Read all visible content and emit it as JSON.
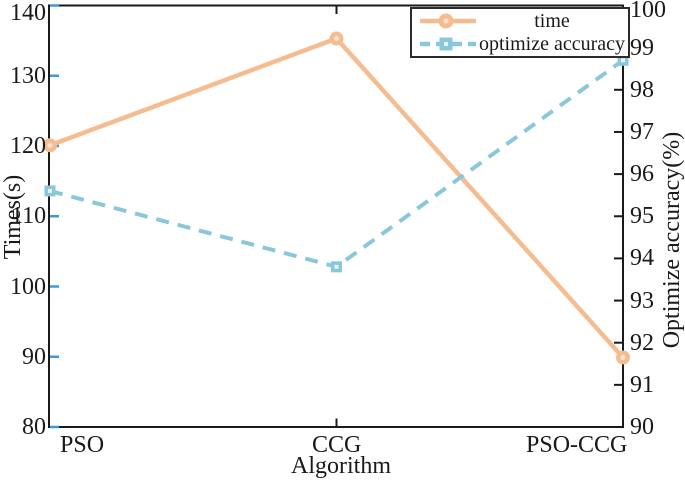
{
  "figure": {
    "background": "#ffffff"
  },
  "chart_data": {
    "type": "line",
    "title": "",
    "categories": [
      "PSO",
      "CCG",
      "PSO-CCG"
    ],
    "xlabel": "Algorithm",
    "series": [
      {
        "name": "time",
        "axis": "left",
        "values": [
          120.1,
          135.3,
          89.9
        ],
        "color": "#f5bd8f",
        "line_style": "solid",
        "marker": "circle"
      },
      {
        "name": "optimize accuracy",
        "axis": "right",
        "values": [
          95.6,
          93.8,
          98.7
        ],
        "color": "#8bc7da",
        "line_style": "dashed",
        "marker": "square"
      }
    ],
    "y_left": {
      "label": "Times(s)",
      "min": 80,
      "max": 140,
      "step": 10,
      "tick_color": "#3e98d9"
    },
    "y_right": {
      "label": "Optimize accuracy(%)",
      "min": 90,
      "max": 100,
      "step": 1,
      "tick_color": "#1a1a1a"
    },
    "grid": false,
    "legend_position": "top-right",
    "spine_color": "#1a1a1a"
  }
}
